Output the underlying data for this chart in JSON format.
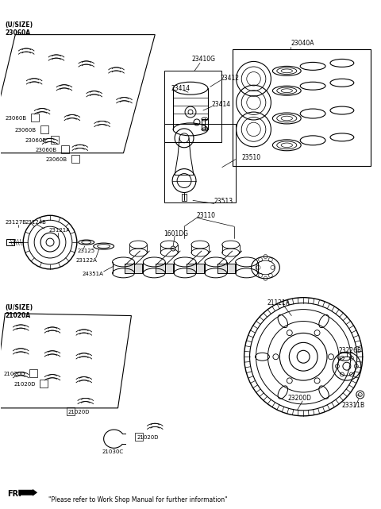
{
  "background_color": "#ffffff",
  "line_color": "#000000",
  "fig_width": 4.8,
  "fig_height": 6.41,
  "dpi": 100,
  "subtitle": "\"Please refer to Work Shop Manual for further information\"",
  "labels": {
    "usize_top": "(U/SIZE)",
    "23060A": "23060A",
    "23060B_1": "23060B",
    "23060B_2": "23060B",
    "23060B_3": "23060B",
    "23060B_4": "23060B",
    "23060B_5": "23060B",
    "23410G": "23410G",
    "23040A": "23040A",
    "23414_1": "23414",
    "23412": "23412",
    "23414_2": "23414",
    "23510": "23510",
    "23513": "23513",
    "23127B": "23127B",
    "23124B": "23124B",
    "23121A": "23121A",
    "23110": "23110",
    "1601DG": "1601DG",
    "23125": "23125",
    "23122A": "23122A",
    "24351A": "24351A",
    "usize_bot": "(U/SIZE)",
    "21020A": "21020A",
    "21020D_1": "21020D",
    "21020D_2": "21020D",
    "21020D_3": "21020D",
    "21020D_4": "21020D",
    "21030C": "21030C",
    "21121A": "21121A",
    "23226B": "23226B",
    "23311B": "23311B",
    "23200D": "23200D",
    "FR": "FR."
  }
}
